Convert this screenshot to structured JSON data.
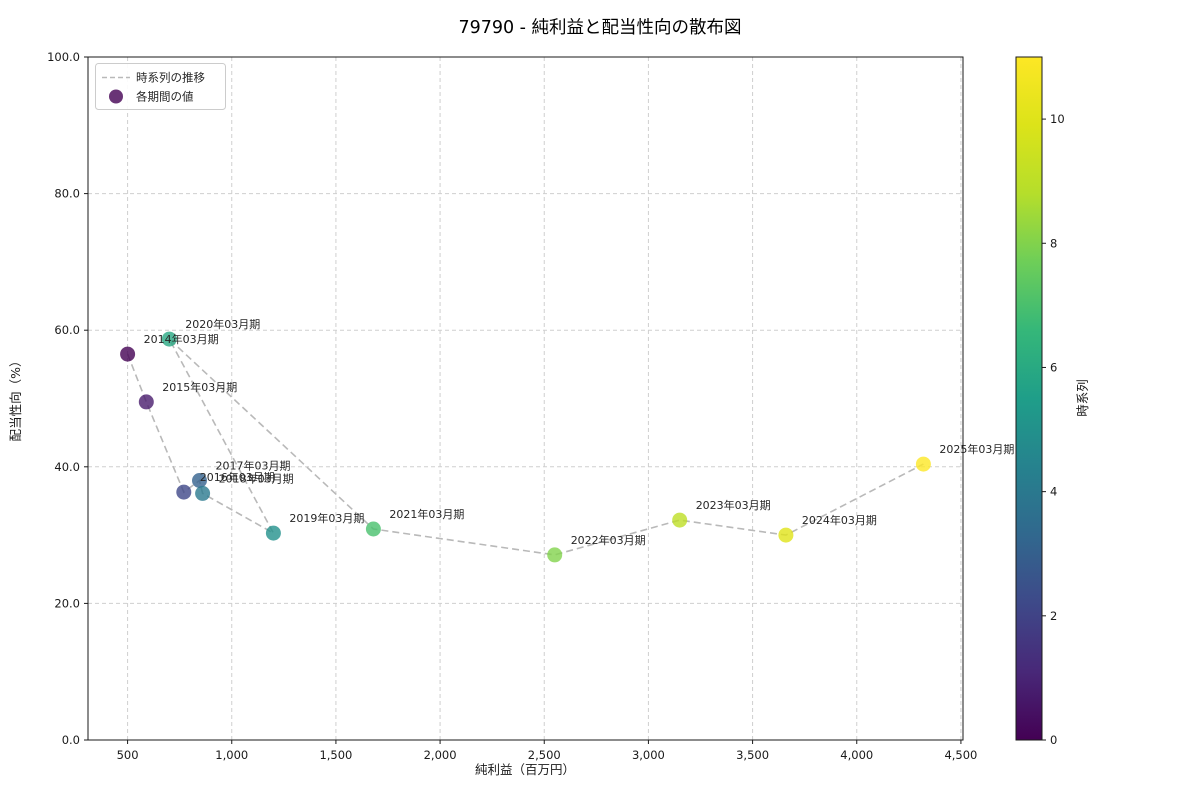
{
  "chart_data": {
    "type": "scatter",
    "title": "79790 - 純利益と配当性向の散布図",
    "xlabel": "純利益（百万円）",
    "ylabel": "配当性向（%）",
    "xlim": [
      310,
      4510
    ],
    "ylim": [
      0,
      100
    ],
    "grid": true,
    "xticks": [
      {
        "v": 500,
        "label": "500"
      },
      {
        "v": 1000,
        "label": "1,000"
      },
      {
        "v": 1500,
        "label": "1,500"
      },
      {
        "v": 2000,
        "label": "2,000"
      },
      {
        "v": 2500,
        "label": "2,500"
      },
      {
        "v": 3000,
        "label": "3,000"
      },
      {
        "v": 3500,
        "label": "3,500"
      },
      {
        "v": 4000,
        "label": "4,000"
      },
      {
        "v": 4500,
        "label": "4,500"
      }
    ],
    "yticks": [
      {
        "v": 0,
        "label": "0.0"
      },
      {
        "v": 20,
        "label": "20.0"
      },
      {
        "v": 40,
        "label": "40.0"
      },
      {
        "v": 60,
        "label": "60.0"
      },
      {
        "v": 80,
        "label": "80.0"
      },
      {
        "v": 100,
        "label": "100.0"
      }
    ],
    "legend": [
      {
        "label": "時系列の推移",
        "marker": "dashed-line",
        "color": "#b9b9b9"
      },
      {
        "label": "各期間の値",
        "marker": "dot",
        "color": "#440154"
      }
    ],
    "colorbar": {
      "label": "時系列",
      "min": 0,
      "max": 11,
      "ticks": [
        0,
        2,
        4,
        6,
        8,
        10
      ],
      "gradient": [
        "#440154",
        "#482878",
        "#3e4989",
        "#31688e",
        "#26828e",
        "#1f9e89",
        "#35b779",
        "#6ece58",
        "#b5de2b",
        "#dce319",
        "#fde725"
      ]
    },
    "points": [
      {
        "label": "2014年03月期",
        "x": 500,
        "y": 56.5,
        "t": 0,
        "color": "#440154"
      },
      {
        "label": "2015年03月期",
        "x": 590,
        "y": 49.5,
        "t": 1,
        "color": "#481b6d"
      },
      {
        "label": "2016年03月期",
        "x": 770,
        "y": 36.3,
        "t": 2,
        "color": "#3f4788"
      },
      {
        "label": "2017年03月期",
        "x": 845,
        "y": 38.0,
        "t": 3,
        "color": "#33628d"
      },
      {
        "label": "2018年03月期",
        "x": 860,
        "y": 36.1,
        "t": 4,
        "color": "#2a798e"
      },
      {
        "label": "2019年03月期",
        "x": 1200,
        "y": 30.3,
        "t": 5,
        "color": "#23918c"
      },
      {
        "label": "2020年03月期",
        "x": 700,
        "y": 58.7,
        "t": 6,
        "color": "#28a782"
      },
      {
        "label": "2021年03月期",
        "x": 1680,
        "y": 30.9,
        "t": 7,
        "color": "#48c16d"
      },
      {
        "label": "2022年03月期",
        "x": 2550,
        "y": 27.1,
        "t": 8,
        "color": "#82d34c"
      },
      {
        "label": "2023年03月期",
        "x": 3150,
        "y": 32.2,
        "t": 9,
        "color": "#bedf26"
      },
      {
        "label": "2024年03月期",
        "x": 3660,
        "y": 30.0,
        "t": 10,
        "color": "#e0e418"
      },
      {
        "label": "2025年03月期",
        "x": 4320,
        "y": 40.4,
        "t": 11,
        "color": "#fde725"
      }
    ]
  }
}
